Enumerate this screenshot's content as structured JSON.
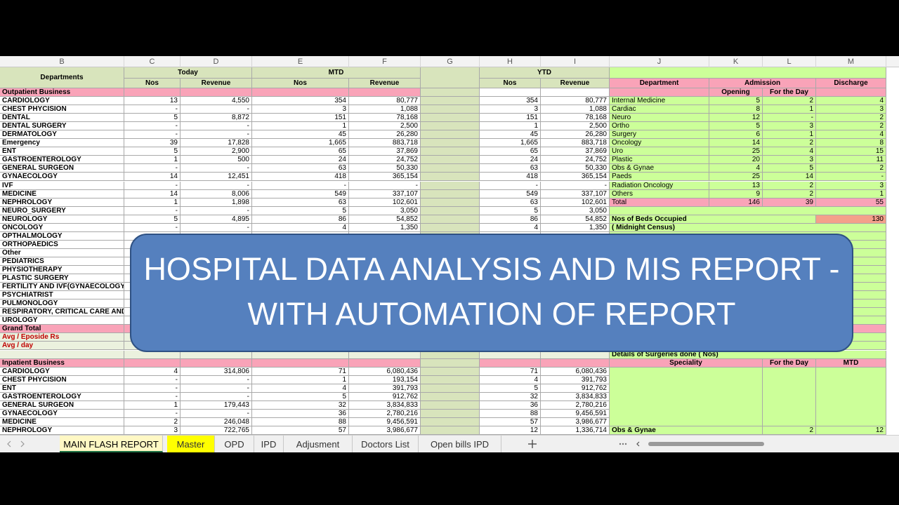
{
  "column_letters": [
    "B",
    "C",
    "D",
    "E",
    "F",
    "G",
    "H",
    "I",
    "J",
    "K",
    "L",
    "M"
  ],
  "header": {
    "departments": "Departments",
    "today": "Today",
    "mtd": "MTD",
    "ytd": "YTD",
    "subheaders": [
      "Nos",
      "Revenue",
      "Nos",
      "Revenue",
      "Nos",
      "Revenue"
    ]
  },
  "outpatient": {
    "title": "Outpatient Business",
    "rows": [
      [
        "CARDIOLOGY",
        "13",
        "4,550",
        "354",
        "80,777",
        "354",
        "80,777"
      ],
      [
        "CHEST PHYCISION",
        "-",
        "-",
        "3",
        "1,088",
        "3",
        "1,088"
      ],
      [
        "DENTAL",
        "5",
        "8,872",
        "151",
        "78,168",
        "151",
        "78,168"
      ],
      [
        "DENTAL SURGERY",
        "-",
        "-",
        "1",
        "2,500",
        "1",
        "2,500"
      ],
      [
        "DERMATOLOGY",
        "-",
        "-",
        "45",
        "26,280",
        "45",
        "26,280"
      ],
      [
        "Emergency",
        "39",
        "17,828",
        "1,665",
        "883,718",
        "1,665",
        "883,718"
      ],
      [
        "ENT",
        "5",
        "2,900",
        "65",
        "37,869",
        "65",
        "37,869"
      ],
      [
        "GASTROENTEROLOGY",
        "1",
        "500",
        "24",
        "24,752",
        "24",
        "24,752"
      ],
      [
        "GENERAL SURGEON",
        "-",
        "-",
        "63",
        "50,330",
        "63",
        "50,330"
      ],
      [
        "GYNAECOLOGY",
        "14",
        "12,451",
        "418",
        "365,154",
        "418",
        "365,154"
      ],
      [
        "IVF",
        "-",
        "-",
        "-",
        "-",
        "-",
        "-"
      ],
      [
        "MEDICINE",
        "14",
        "8,006",
        "549",
        "337,107",
        "549",
        "337,107"
      ],
      [
        "NEPHROLOGY",
        "1",
        "1,898",
        "63",
        "102,601",
        "63",
        "102,601"
      ],
      [
        "NEURO_SURGERY",
        "-",
        "-",
        "5",
        "3,050",
        "5",
        "3,050"
      ],
      [
        "NEUROLOGY",
        "5",
        "4,895",
        "86",
        "54,852",
        "86",
        "54,852"
      ],
      [
        "ONCOLOGY",
        "-",
        "-",
        "4",
        "1,350",
        "4",
        "1,350"
      ]
    ],
    "hidden_rows": [
      "OPTHALMOLOGY",
      "ORTHOPAEDICS",
      "Other",
      "PEDIATRICS",
      "PHYSIOTHERAPY",
      "PLASTIC SURGERY",
      "FERTILITY AND IVF(GYNAECOLOGY)",
      "PSYCHIATRIST",
      "PULMONOLOGY",
      "RESPIRATORY, CRITICAL CARE AND",
      "UROLOGY"
    ],
    "grand_total": "Grand Total",
    "avg_episode": "Avg / Eposide  Rs",
    "avg_day": "Avg / day"
  },
  "inpatient": {
    "title": "Inpatient Business",
    "rows": [
      [
        "CARDIOLOGY",
        "4",
        "314,806",
        "71",
        "6,080,436",
        "71",
        "6,080,436"
      ],
      [
        "CHEST PHYCISION",
        "-",
        "-",
        "1",
        "193,154",
        "4",
        "391,793"
      ],
      [
        "ENT",
        "-",
        "-",
        "4",
        "391,793",
        "5",
        "912,762"
      ],
      [
        "GASTROENTEROLOGY",
        "-",
        "-",
        "5",
        "912,762",
        "32",
        "3,834,833"
      ],
      [
        "GENERAL SURGEON",
        "1",
        "179,443",
        "32",
        "3,834,833",
        "36",
        "2,780,216"
      ],
      [
        "GYNAECOLOGY",
        "-",
        "-",
        "36",
        "2,780,216",
        "88",
        "9,456,591"
      ],
      [
        "MEDICINE",
        "2",
        "246,048",
        "88",
        "9,456,591",
        "57",
        "3,986,677"
      ],
      [
        "NEPHROLOGY",
        "3",
        "722,765",
        "57",
        "3,986,677",
        "12",
        "1,336,714"
      ]
    ]
  },
  "admissions": {
    "headers": {
      "department": "Department",
      "admission": "Admission",
      "discharge": "Discharge",
      "opening": "Opening",
      "for_the_day": "For the Day"
    },
    "rows": [
      [
        "Internal Medicine",
        "5",
        "2",
        "4"
      ],
      [
        "Cardiac",
        "8",
        "1",
        "3"
      ],
      [
        "Neuro",
        "12",
        "-",
        "2"
      ],
      [
        "Ortho",
        "5",
        "3",
        "2"
      ],
      [
        "Surgery",
        "6",
        "1",
        "4"
      ],
      [
        "Oncology",
        "14",
        "2",
        "8"
      ],
      [
        "Uro",
        "25",
        "4",
        "15"
      ],
      [
        "Plastic",
        "20",
        "3",
        "11"
      ],
      [
        "Obs & Gynae",
        "4",
        "5",
        "2"
      ],
      [
        "Paeds",
        "25",
        "14",
        "-"
      ],
      [
        "Radiation Oncology",
        "13",
        "2",
        "3"
      ],
      [
        "Others",
        "9",
        "2",
        "1"
      ]
    ],
    "total": [
      "Total",
      "146",
      "39",
      "55"
    ]
  },
  "beds": {
    "label": "Nos of Beds Occupied",
    "note": "( Midnight Census)",
    "value": "130"
  },
  "surgeries": {
    "title": "Details of Surgeries done ( Nos)",
    "headers": [
      "Speciality",
      "For the Day",
      "MTD"
    ],
    "rows": [
      [
        "Obs & Gynae",
        "2",
        "12"
      ]
    ]
  },
  "banner": {
    "lines": [
      "HOSPITAL DATA ANALYSIS AND MIS REPORT -",
      "WITH AUTOMATION  OF REPORT"
    ]
  },
  "tabs": [
    "MAIN FLASH REPORT",
    "Master",
    "OPD",
    "IPD",
    "Adjusment",
    "Doctors List",
    "Open bills IPD"
  ]
}
